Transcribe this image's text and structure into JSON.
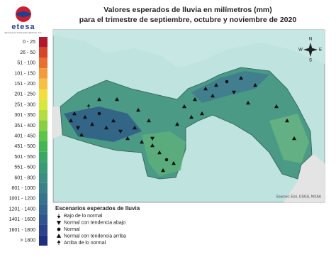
{
  "header": {
    "title_line1": "Valores esperados de lluvia en milímetros (mm)",
    "title_line2": "para el trimestre de septiembre, octubre y noviembre de 2020"
  },
  "logo": {
    "name": "etesa",
    "subtitle": "Empresa de Transmisión Eléctrica, S.A."
  },
  "color_legend": {
    "items": [
      {
        "label": "0 - 25",
        "color": "#b2182b"
      },
      {
        "label": "26 - 50",
        "color": "#d6452a"
      },
      {
        "label": "51 - 100",
        "color": "#e8702e"
      },
      {
        "label": "101 - 150",
        "color": "#f29a3c"
      },
      {
        "label": "151 - 200",
        "color": "#f6c045"
      },
      {
        "label": "201 - 250",
        "color": "#f3de3e"
      },
      {
        "label": "251 - 300",
        "color": "#d9e63a"
      },
      {
        "label": "301 - 350",
        "color": "#b3dc3c"
      },
      {
        "label": "351 - 400",
        "color": "#88cf42"
      },
      {
        "label": "401 - 450",
        "color": "#5fc24a"
      },
      {
        "label": "451 - 500",
        "color": "#45b455"
      },
      {
        "label": "501 - 550",
        "color": "#3aa667"
      },
      {
        "label": "551 - 600",
        "color": "#3a9a77"
      },
      {
        "label": "601 - 800",
        "color": "#3b8e81"
      },
      {
        "label": "801 - 1000",
        "color": "#3a8189"
      },
      {
        "label": "1001 - 1200",
        "color": "#38738d"
      },
      {
        "label": "1201 - 1400",
        "color": "#35648f"
      },
      {
        "label": "1401 - 1600",
        "color": "#30548f"
      },
      {
        "label": "1601 - 1800",
        "color": "#2a438a"
      },
      {
        "label": "> 1800",
        "color": "#1f2f7e"
      }
    ]
  },
  "scenario_legend": {
    "title": "Escenarios esperados de lluvia",
    "items": [
      "Bajo de lo normal",
      "Normal con tendencia abajo",
      "Normal",
      "Normal con tendencia arriba",
      "Arriba de lo normal"
    ]
  },
  "map": {
    "source": "Sources: Esri, USGS, NOAA",
    "compass": {
      "n": "N",
      "s": "S",
      "e": "E",
      "w": "W"
    }
  }
}
